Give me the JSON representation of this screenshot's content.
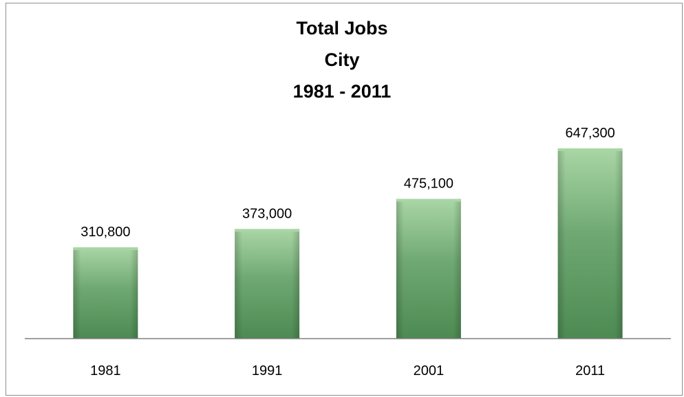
{
  "chart_data": {
    "type": "bar",
    "title_lines": [
      "Total Jobs",
      "City",
      "1981 - 2011"
    ],
    "categories": [
      "1981",
      "1991",
      "2001",
      "2011"
    ],
    "values": [
      310800,
      373000,
      475100,
      647300
    ],
    "value_labels": [
      "310,800",
      "373,000",
      "475,100",
      "647,300"
    ],
    "xlabel": "",
    "ylabel": "",
    "ylim": [
      0,
      700000
    ],
    "grid": false,
    "legend": "none",
    "colors": {
      "bar_top": "#a9d6a5",
      "bar_mid": "#6fa872",
      "bar_bottom": "#4d8a52",
      "axis": "#808080"
    }
  }
}
